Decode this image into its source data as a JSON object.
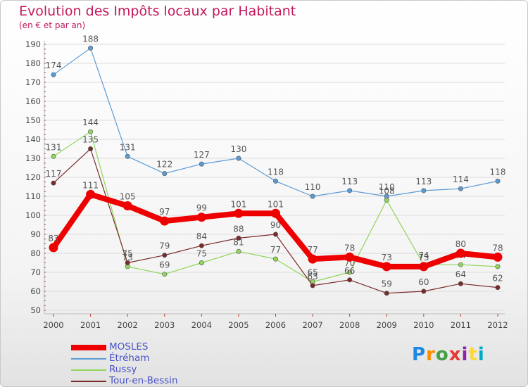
{
  "header": {
    "title": "Evolution des Impôts locaux par Habitant",
    "subtitle": "(en € et par an)"
  },
  "logo": {
    "text": "Proxiti",
    "colors": [
      "#1e88e5",
      "#fb8c00",
      "#43a047",
      "#e53935",
      "#8e24aa",
      "#fdd835",
      "#00acc1"
    ]
  },
  "chart_data": {
    "type": "line",
    "title": "Evolution des Impôts locaux par Habitant",
    "subtitle": "(en € et par an)",
    "xlabel": "",
    "ylabel": "",
    "x": [
      "2000",
      "2001",
      "2002",
      "2003",
      "2004",
      "2005",
      "2006",
      "2007",
      "2008",
      "2009",
      "2010",
      "2011",
      "2012"
    ],
    "ylim": [
      50,
      190
    ],
    "yticks": [
      "50",
      "60",
      "70",
      "80",
      "90",
      "100",
      "110",
      "120",
      "130",
      "140",
      "150",
      "160",
      "170",
      "180",
      "190"
    ],
    "grid": "horizontal",
    "legend_position": "bottom-left",
    "series": [
      {
        "name": "Étréham",
        "color": "#5b9bd5",
        "values": [
          174,
          188,
          131,
          122,
          127,
          130,
          118,
          110,
          113,
          110,
          113,
          114,
          118
        ],
        "labels": [
          "174",
          "188",
          "131",
          "122",
          "127",
          "130",
          "118",
          "110",
          "113",
          "110",
          "113",
          "114",
          "118"
        ]
      },
      {
        "name": "Russy",
        "color": "#8fd65a",
        "values": [
          131,
          144,
          73,
          69,
          75,
          81,
          77,
          65,
          70,
          108,
          74,
          74,
          73
        ],
        "labels": [
          "131",
          "144",
          "73",
          "69",
          "75",
          "81",
          "77",
          "65",
          "70",
          "108",
          "74",
          "74",
          ""
        ]
      },
      {
        "name": "Tour-en-Bessin",
        "color": "#7b2a2a",
        "values": [
          117,
          135,
          75,
          79,
          84,
          88,
          90,
          63,
          66,
          59,
          60,
          64,
          62
        ],
        "labels": [
          "117",
          "135",
          "75",
          "79",
          "84",
          "88",
          "90",
          "63",
          "66",
          "59",
          "60",
          "64",
          "62"
        ]
      },
      {
        "name": "MOSLES",
        "color": "#ee0000",
        "values": [
          83,
          111,
          105,
          97,
          99,
          101,
          101,
          77,
          78,
          73,
          73,
          80,
          78
        ],
        "labels": [
          "83",
          "111",
          "105",
          "97",
          "99",
          "101",
          "101",
          "77",
          "78",
          "73",
          "73",
          "80",
          "78"
        ]
      }
    ]
  },
  "legend": {
    "items": [
      {
        "label": "MOSLES",
        "color": "#ee0000"
      },
      {
        "label": "Étréham",
        "color": "#5b9bd5"
      },
      {
        "label": "Russy",
        "color": "#8fd65a"
      },
      {
        "label": "Tour-en-Bessin",
        "color": "#7b2a2a"
      }
    ]
  }
}
